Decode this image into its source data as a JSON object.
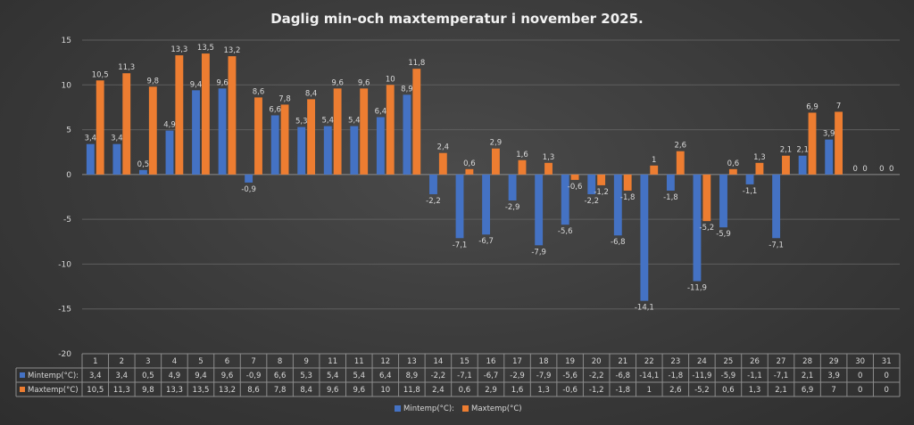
{
  "chart_data": {
    "type": "bar",
    "title": "Daglig min-och maxtemperatur i november 2025.",
    "categories": [
      "1",
      "2",
      "3",
      "4",
      "5",
      "6",
      "7",
      "8",
      "9",
      "11",
      "11",
      "12",
      "13",
      "14",
      "15",
      "16",
      "17",
      "18",
      "19",
      "20",
      "21",
      "22",
      "23",
      "24",
      "25",
      "26",
      "27",
      "28",
      "29",
      "30",
      "31"
    ],
    "series": [
      {
        "name": "Mintemp(°C):",
        "color": "#4472c4",
        "values": [
          3.4,
          3.4,
          0.5,
          4.9,
          9.4,
          9.6,
          -0.9,
          6.6,
          5.3,
          5.4,
          5.4,
          6.4,
          8.9,
          -2.2,
          -7.1,
          -6.7,
          -2.9,
          -7.9,
          -5.6,
          -2.2,
          -6.8,
          -14.1,
          -1.8,
          -11.9,
          -5.9,
          -1.1,
          -7.1,
          2.1,
          3.9,
          0,
          0
        ],
        "labels": [
          "3,4",
          "3,4",
          "0,5",
          "4,9",
          "9,4",
          "9,6",
          "-0,9",
          "6,6",
          "5,3",
          "5,4",
          "5,4",
          "6,4",
          "8,9",
          "-2,2",
          "-7,1",
          "-6,7",
          "-2,9",
          "-7,9",
          "-5,6",
          "-2,2",
          "-6,8",
          "-14,1",
          "-1,8",
          "-11,9",
          "-5,9",
          "-1,1",
          "-7,1",
          "2,1",
          "3,9",
          "0",
          "0"
        ]
      },
      {
        "name": "Maxtemp(°C)",
        "color": "#ed7d31",
        "values": [
          10.5,
          11.3,
          9.8,
          13.3,
          13.5,
          13.2,
          8.6,
          7.8,
          8.4,
          9.6,
          9.6,
          10,
          11.8,
          2.4,
          0.6,
          2.9,
          1.6,
          1.3,
          -0.6,
          -1.2,
          -1.8,
          1,
          2.6,
          -5.2,
          0.6,
          1.3,
          2.1,
          6.9,
          7,
          0,
          0
        ],
        "labels": [
          "10,5",
          "11,3",
          "9,8",
          "13,3",
          "13,5",
          "13,2",
          "8,6",
          "7,8",
          "8,4",
          "9,6",
          "9,6",
          "10",
          "11,8",
          "2,4",
          "0,6",
          "2,9",
          "1,6",
          "1,3",
          "-0,6",
          "-1,2",
          "-1,8",
          "1",
          "2,6",
          "-5,2",
          "0,6",
          "1,3",
          "2,1",
          "6,9",
          "7",
          "0",
          "0"
        ]
      }
    ],
    "table_series_labels": [
      "Mintemp(°C):",
      "Maxtemp(°C)"
    ],
    "ylim": [
      -20,
      15
    ],
    "yticks": [
      "15",
      "10",
      "5",
      "0",
      "-5",
      "-10",
      "-15",
      "-20"
    ],
    "ytick_values": [
      15,
      10,
      5,
      0,
      -5,
      -10,
      -15,
      -20
    ],
    "grid": true,
    "legend": "bottom",
    "data_table": true
  }
}
